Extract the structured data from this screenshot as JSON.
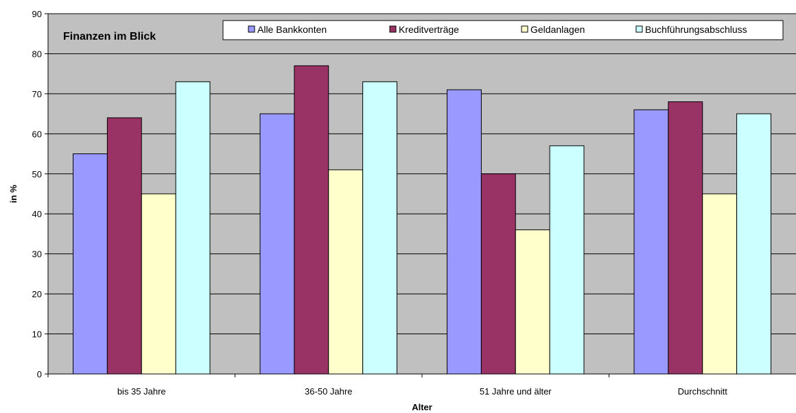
{
  "chart_data": {
    "type": "bar",
    "title": "Finanzen im Blick",
    "xlabel": "Alter",
    "ylabel": "in %",
    "categories": [
      "bis 35 Jahre",
      "36-50 Jahre",
      "51 Jahre und älter",
      "Durchschnitt"
    ],
    "series": [
      {
        "name": "Alle Bankkonten",
        "color": "#9999ff",
        "values": [
          55,
          65,
          71,
          66
        ]
      },
      {
        "name": "Kreditverträge",
        "color": "#993366",
        "values": [
          64,
          77,
          50,
          68
        ]
      },
      {
        "name": "Geldanlagen",
        "color": "#ffffcc",
        "values": [
          45,
          51,
          36,
          45
        ]
      },
      {
        "name": "Buchführungsabschluss",
        "color": "#ccffff",
        "values": [
          73,
          73,
          57,
          65
        ]
      }
    ],
    "ylim": [
      0,
      90
    ],
    "yticks": [
      0,
      10,
      20,
      30,
      40,
      50,
      60,
      70,
      80,
      90
    ],
    "yticklabels": [
      "0",
      "10",
      "20",
      "30",
      "40",
      "50",
      "60",
      "70",
      "80",
      "90"
    ],
    "grid": true,
    "legend_position": "top",
    "plot_background": "#c0c0c0"
  }
}
